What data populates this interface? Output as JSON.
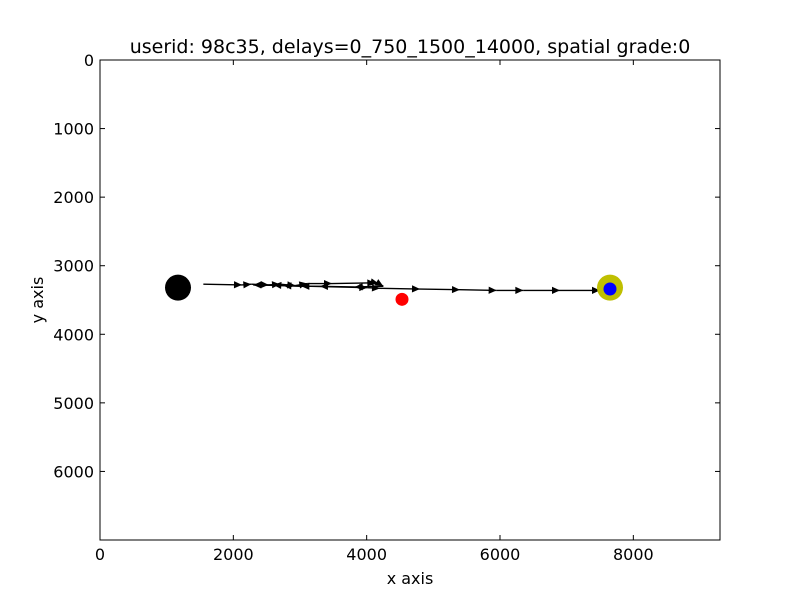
{
  "chart_data": {
    "type": "scatter",
    "title": "userid: 98c35, delays=0_750_1500_14000, spatial grade:0",
    "xlabel": "x axis",
    "ylabel": "y axis",
    "xlim": [
      0,
      9300
    ],
    "ylim": [
      0,
      7000
    ],
    "y_inverted": true,
    "grid": false,
    "xticks": [
      0,
      2000,
      4000,
      6000,
      8000
    ],
    "yticks": [
      0,
      1000,
      2000,
      3000,
      4000,
      5000,
      6000
    ],
    "path": {
      "color": "#000000",
      "points": [
        [
          1550,
          3270
        ],
        [
          2130,
          3280
        ],
        [
          2270,
          3270
        ],
        [
          2530,
          3280
        ],
        [
          2700,
          3270
        ],
        [
          2930,
          3290
        ],
        [
          3110,
          3260
        ],
        [
          3480,
          3260
        ],
        [
          4130,
          3250
        ],
        [
          4180,
          3260
        ],
        [
          4250,
          3300
        ],
        [
          3820,
          3310
        ],
        [
          3300,
          3300
        ],
        [
          3020,
          3300
        ],
        [
          2750,
          3290
        ],
        [
          2600,
          3280
        ],
        [
          2300,
          3280
        ],
        [
          4010,
          3320
        ],
        [
          4200,
          3330
        ],
        [
          4800,
          3340
        ],
        [
          5400,
          3350
        ],
        [
          5950,
          3360
        ],
        [
          6350,
          3360
        ],
        [
          6900,
          3360
        ],
        [
          7500,
          3360
        ]
      ]
    },
    "markers": [
      {
        "name": "black-target",
        "x": 1170,
        "y": 3320,
        "color": "#000000",
        "size": "large"
      },
      {
        "name": "red-point",
        "x": 4530,
        "y": 3490,
        "color": "#ff0000",
        "size": "small"
      },
      {
        "name": "yellow-target",
        "x": 7650,
        "y": 3320,
        "color": "#bfbf00",
        "size": "large"
      },
      {
        "name": "blue-point",
        "x": 7650,
        "y": 3340,
        "color": "#0000ff",
        "size": "small"
      }
    ]
  }
}
